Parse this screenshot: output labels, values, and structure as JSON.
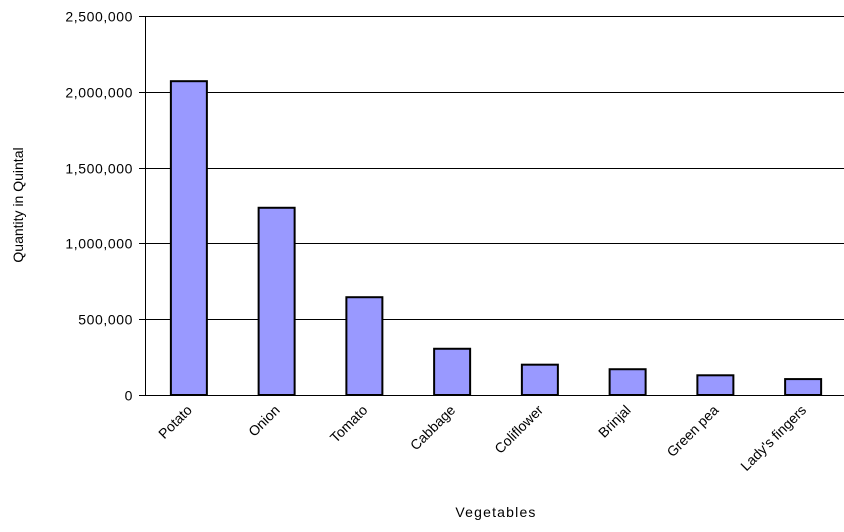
{
  "chart_data": {
    "type": "bar",
    "title": "",
    "xlabel": "Vegetables",
    "ylabel": "Quantity in Quintal",
    "categories": [
      "Potato",
      "Onion",
      "Tomato",
      "Cabbage",
      "Coliflower",
      "Brinjal",
      "Green pea",
      "Lady's fingers"
    ],
    "values": [
      2070000,
      1235000,
      645000,
      305000,
      200000,
      170000,
      130000,
      105000
    ],
    "ylim": [
      0,
      2500000
    ],
    "y_ticks": [
      0,
      500000,
      1000000,
      1500000,
      2000000,
      2500000
    ],
    "y_tick_labels": [
      "0",
      "500,000",
      "1,000,000",
      "1,500,000",
      "2,000,000",
      "2,500,000"
    ],
    "grid": true,
    "legend": "none",
    "colors": {
      "bar_fill": "#9999ff",
      "bar_stroke": "#000000",
      "grid": "#000000"
    }
  }
}
